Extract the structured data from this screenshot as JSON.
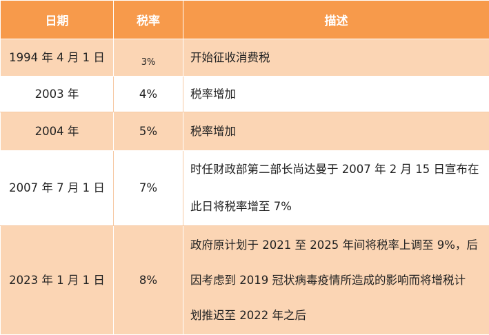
{
  "table": {
    "headers": {
      "date": "日期",
      "rate": "税率",
      "desc": "描述"
    },
    "rows": [
      {
        "date": "1994 年 4 月 1 日",
        "rate": "3%",
        "desc": [
          "开始征收消费税"
        ]
      },
      {
        "date": "2003 年",
        "rate": "4%",
        "desc": [
          "税率增加"
        ]
      },
      {
        "date": "2004 年",
        "rate": "5%",
        "desc": [
          "税率增加"
        ]
      },
      {
        "date": "2007 年 7 月 1 日",
        "rate": "7%",
        "desc": [
          "时任财政部第二部长尚达曼于 2007 年 2 月 15 日宣布在",
          "此日将税率增至 7%"
        ]
      },
      {
        "date": "2023 年 1 月 1 日",
        "rate": "8%",
        "desc": [
          "政府原计划于 2021 至 2025 年间将税率上调至 9%，后",
          "因考虑到 2019 冠状病毒疫情所造成的影响而将增税计",
          "划推迟至 2022 年之后"
        ]
      }
    ]
  },
  "colors": {
    "header_bg": "#f79a4b",
    "header_text": "#ffffff",
    "shade_row": "#fbd5b4",
    "plain_row": "#ffffff"
  }
}
